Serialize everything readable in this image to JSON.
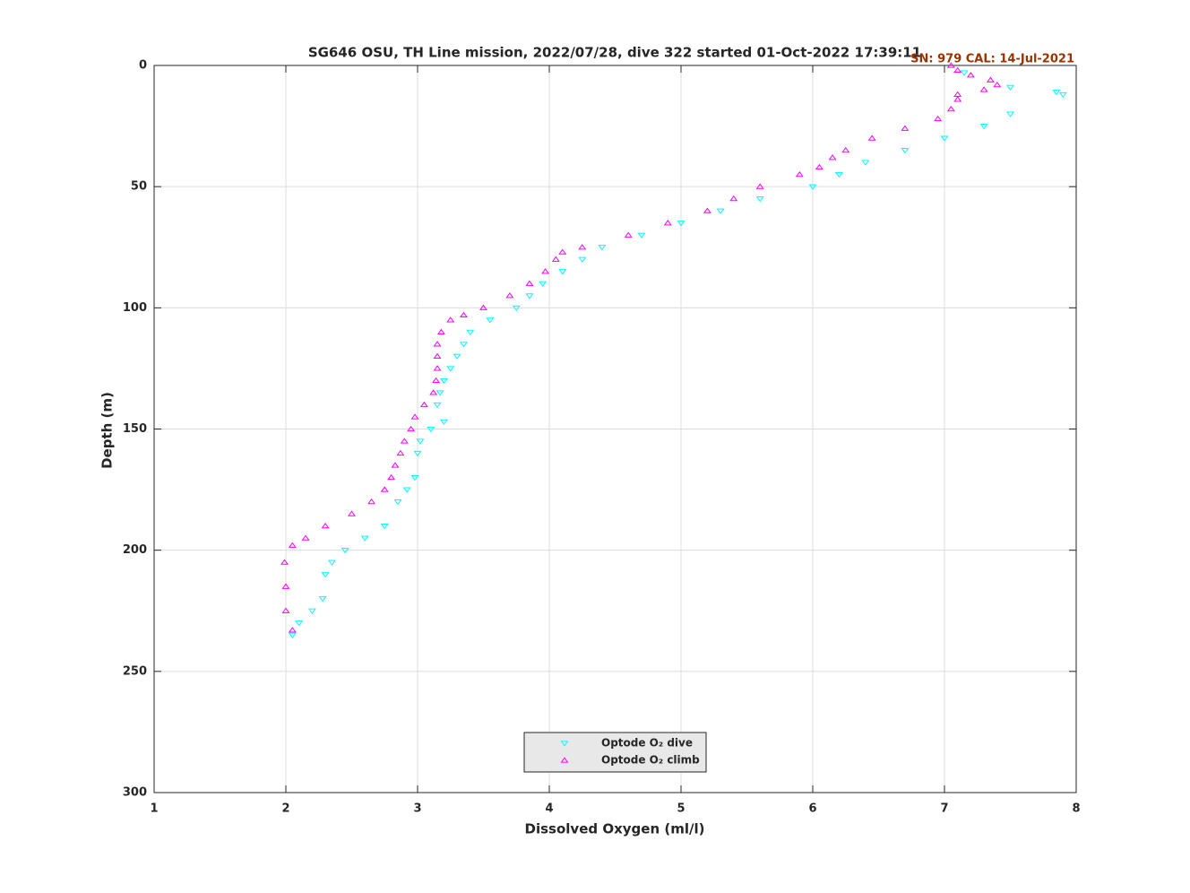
{
  "chart_data": {
    "type": "scatter",
    "title": "SG646 OSU, TH Line mission, 2022/07/28, dive 322 started 01-Oct-2022 17:39:11",
    "annotation": "SN: 979  CAL: 14-Jul-2021",
    "annotation_color": "#993300",
    "x_label": "Dissolved Oxygen (ml/l)",
    "y_label": "Depth (m)",
    "xlim": [
      1,
      8
    ],
    "xticks": [
      1,
      2,
      3,
      4,
      5,
      6,
      7,
      8
    ],
    "ylim": [
      0,
      300
    ],
    "yticks": [
      0,
      50,
      100,
      150,
      200,
      250,
      300
    ],
    "y_reversed": true,
    "grid": true,
    "legend": "bottom",
    "series": [
      {
        "name": "Optode O₂ dive",
        "color": "#00ffff",
        "marker": "triangle-down",
        "x": [
          7.15,
          7.5,
          7.85,
          7.9,
          7.5,
          7.3,
          7.0,
          6.7,
          6.4,
          6.2,
          6.0,
          5.6,
          5.3,
          5.0,
          4.7,
          4.4,
          4.25,
          4.1,
          3.95,
          3.85,
          3.75,
          3.55,
          3.4,
          3.35,
          3.3,
          3.25,
          3.2,
          3.17,
          3.15,
          3.2,
          3.1,
          3.02,
          3.0,
          2.98,
          2.92,
          2.85,
          2.75,
          2.6,
          2.45,
          2.35,
          2.3,
          2.28,
          2.2,
          2.1,
          2.05
        ],
        "values": [
          3,
          9,
          11,
          12,
          20,
          25,
          30,
          35,
          40,
          45,
          50,
          55,
          60,
          65,
          70,
          75,
          80,
          85,
          90,
          95,
          100,
          105,
          110,
          115,
          120,
          125,
          130,
          135,
          140,
          147,
          150,
          155,
          160,
          170,
          175,
          180,
          190,
          195,
          200,
          205,
          210,
          220,
          225,
          230,
          235
        ]
      },
      {
        "name": "Optode O₂ climb",
        "color": "#ff00ff",
        "marker": "triangle-up",
        "x": [
          2.05,
          2.0,
          2.0,
          1.99,
          2.05,
          2.15,
          2.3,
          2.5,
          2.65,
          2.75,
          2.8,
          2.83,
          2.87,
          2.9,
          2.95,
          2.98,
          3.05,
          3.12,
          3.14,
          3.15,
          3.15,
          3.15,
          3.18,
          3.25,
          3.35,
          3.5,
          3.7,
          3.85,
          3.97,
          4.05,
          4.1,
          4.25,
          4.6,
          4.9,
          5.2,
          5.4,
          5.6,
          5.9,
          6.05,
          6.15,
          6.25,
          6.45,
          6.7,
          6.95,
          7.05,
          7.1,
          7.1,
          7.3,
          7.4,
          7.35,
          7.2,
          7.1,
          7.05
        ],
        "values": [
          233,
          225,
          215,
          205,
          198,
          195,
          190,
          185,
          180,
          175,
          170,
          165,
          160,
          155,
          150,
          145,
          140,
          135,
          130,
          125,
          120,
          115,
          110,
          105,
          103,
          100,
          95,
          90,
          85,
          80,
          77,
          75,
          70,
          65,
          60,
          55,
          50,
          45,
          42,
          38,
          35,
          30,
          26,
          22,
          18,
          14,
          12,
          10,
          8,
          6,
          4,
          2,
          0
        ]
      }
    ]
  }
}
